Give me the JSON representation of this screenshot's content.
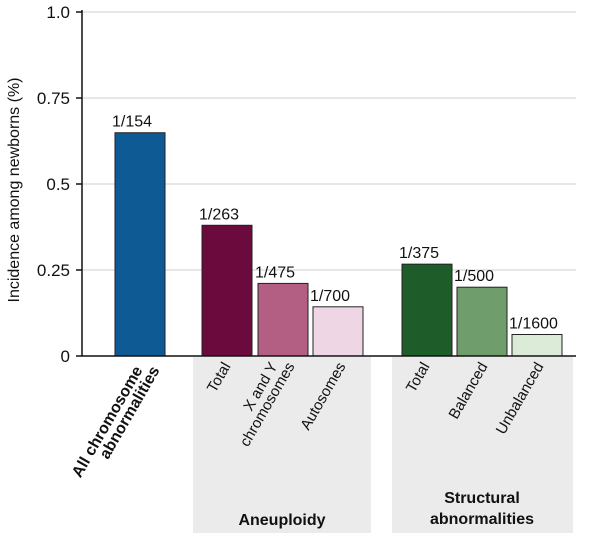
{
  "chart_data": {
    "type": "bar",
    "ylabel": "Incidence among newborns (%)",
    "ylim": [
      0,
      1.0
    ],
    "yticks": [
      "0",
      "0.25",
      "0.5",
      "0.75",
      "1.0"
    ],
    "grid": "horizontal",
    "colors": {
      "all": "#0d5a94",
      "aneuploidy_total": "#6b0a3c",
      "aneuploidy_xy": "#b25f83",
      "aneuploidy_auto": "#efd6e5",
      "struct_total": "#1e5c2a",
      "struct_balanced": "#6f9e6c",
      "struct_unbalanced": "#dcebd8",
      "group_background": "#ebebeb"
    },
    "bars": [
      {
        "category": "All chromosome abnormalities",
        "value": 0.649,
        "label": "1/154",
        "color_key": "all"
      },
      {
        "category": "Total",
        "group": "Aneuploidy",
        "value": 0.38,
        "label": "1/263",
        "color_key": "aneuploidy_total"
      },
      {
        "category": "X and Y chromosomes",
        "group": "Aneuploidy",
        "value": 0.211,
        "label": "1/475",
        "color_key": "aneuploidy_xy"
      },
      {
        "category": "Autosomes",
        "group": "Aneuploidy",
        "value": 0.143,
        "label": "1/700",
        "color_key": "aneuploidy_auto"
      },
      {
        "category": "Total",
        "group": "Structural abnormalities",
        "value": 0.267,
        "label": "1/375",
        "color_key": "struct_total"
      },
      {
        "category": "Balanced",
        "group": "Structural abnormalities",
        "value": 0.2,
        "label": "1/500",
        "color_key": "struct_balanced"
      },
      {
        "category": "Unbalanced",
        "group": "Structural abnormalities",
        "value": 0.0625,
        "label": "1/1600",
        "color_key": "struct_unbalanced"
      }
    ],
    "category_labels": {
      "all_line1": "All chromosome",
      "all_line2": "abnormalities",
      "aneu_total": "Total",
      "aneu_xy_line1": "X and Y",
      "aneu_xy_line2": "chromosomes",
      "aneu_auto": "Autosomes",
      "struct_total": "Total",
      "struct_balanced": "Balanced",
      "struct_unbalanced": "Unbalanced"
    },
    "groups": {
      "aneuploidy": "Aneuploidy",
      "structural_line1": "Structural",
      "structural_line2": "abnormalities"
    }
  }
}
